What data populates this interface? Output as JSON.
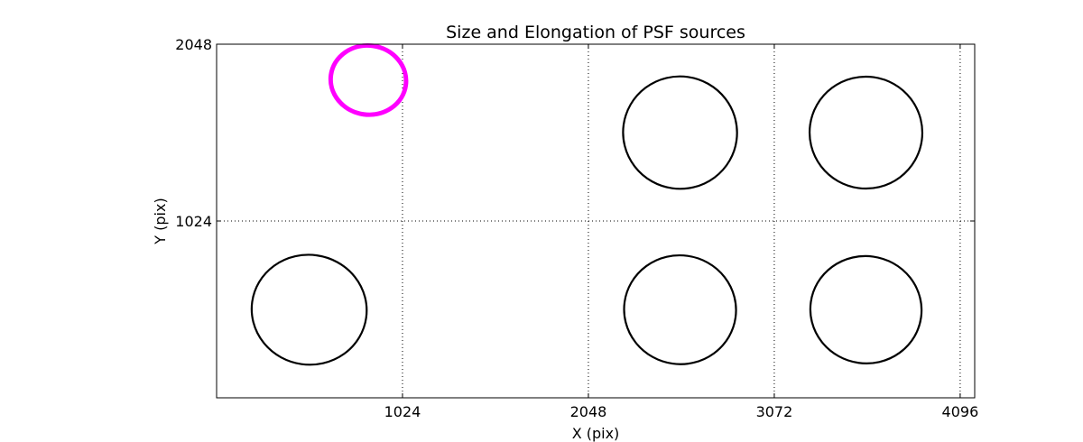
{
  "chart_data": {
    "type": "scatter",
    "title": "Size and Elongation of PSF sources",
    "xlabel": "X (pix)",
    "ylabel": "Y (pix)",
    "xlim": [
      0,
      4176
    ],
    "ylim": [
      0,
      2048
    ],
    "x_ticks": [
      1024,
      2048,
      3072,
      4096
    ],
    "x_tick_labels": [
      "1024",
      "2048",
      "3072",
      "4096"
    ],
    "y_ticks": [
      1024,
      2048
    ],
    "y_tick_labels": [
      "1024",
      "2048"
    ],
    "grid": true,
    "grid_style": "dotted",
    "colors": {
      "normal": "#000000",
      "highlight": "#ff00ff"
    },
    "series": [
      {
        "values": [
          {
            "x": 510,
            "y": 510,
            "width": 634,
            "height": 636,
            "angle": 8,
            "highlight": false
          },
          {
            "x": 2553,
            "y": 510,
            "width": 617,
            "height": 630,
            "angle": 8,
            "highlight": false
          },
          {
            "x": 3577,
            "y": 510,
            "width": 613,
            "height": 621,
            "angle": 8,
            "highlight": false
          },
          {
            "x": 2553,
            "y": 1536,
            "width": 628,
            "height": 651,
            "angle": 8,
            "highlight": false
          },
          {
            "x": 3577,
            "y": 1536,
            "width": 621,
            "height": 648,
            "angle": 8,
            "highlight": false
          },
          {
            "x": 836,
            "y": 1840,
            "width": 416,
            "height": 400,
            "angle": 8,
            "highlight": true
          }
        ]
      }
    ]
  }
}
